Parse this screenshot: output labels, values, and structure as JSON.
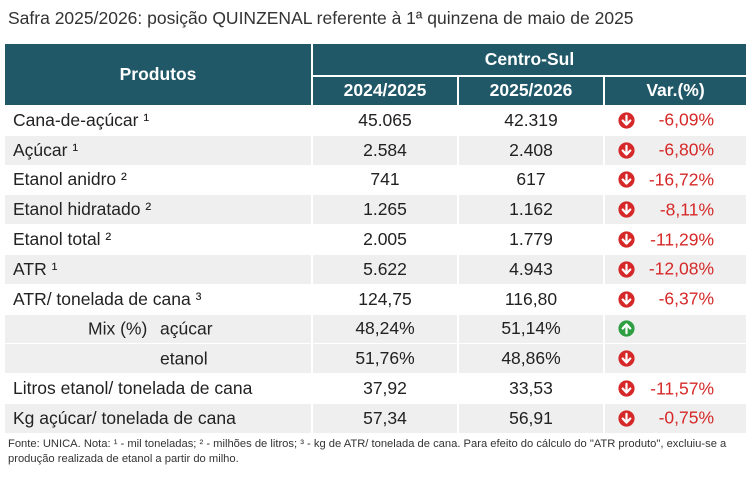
{
  "title": "Safra 2025/2026: posição QUINZENAL referente à 1ª quinzena de maio de 2025",
  "table": {
    "header_products": "Produtos",
    "header_region": "Centro-Sul",
    "col_2024": "2024/2025",
    "col_2025": "2025/2026",
    "col_var": "Var.(%)",
    "rows": [
      {
        "name": "Cana-de-açúcar ¹",
        "v2024": "45.065",
        "v2025": "42.319",
        "var": "-6,09%",
        "arrow": "down"
      },
      {
        "name": "Açúcar ¹",
        "v2024": "2.584",
        "v2025": "2.408",
        "var": "-6,80%",
        "arrow": "down"
      },
      {
        "name": "Etanol anidro ²",
        "v2024": "741",
        "v2025": "617",
        "var": "-16,72%",
        "arrow": "down"
      },
      {
        "name": "Etanol hidratado ²",
        "v2024": "1.265",
        "v2025": "1.162",
        "var": "-8,11%",
        "arrow": "down"
      },
      {
        "name": "Etanol total ²",
        "v2024": "2.005",
        "v2025": "1.779",
        "var": "-11,29%",
        "arrow": "down"
      },
      {
        "name": "ATR ¹",
        "v2024": "5.622",
        "v2025": "4.943",
        "var": "-12,08%",
        "arrow": "down"
      },
      {
        "name": "ATR/ tonelada de cana ³",
        "v2024": "124,75",
        "v2025": "116,80",
        "var": "-6,37%",
        "arrow": "down"
      }
    ],
    "mix": {
      "label": "Mix (%)",
      "sub1": {
        "name": "açúcar",
        "v2024": "48,24%",
        "v2025": "51,14%",
        "arrow": "up"
      },
      "sub2": {
        "name": "etanol",
        "v2024": "51,76%",
        "v2025": "48,86%",
        "arrow": "down"
      }
    },
    "rows_after": [
      {
        "name": "Litros etanol/ tonelada de cana",
        "v2024": "37,92",
        "v2025": "33,53",
        "var": "-11,57%",
        "arrow": "down"
      },
      {
        "name": "Kg açúcar/ tonelada de cana",
        "v2024": "57,34",
        "v2025": "56,91",
        "var": "-0,75%",
        "arrow": "down"
      }
    ]
  },
  "colors": {
    "header": "#215868",
    "negative": "#d62828",
    "down_arrow": "#d62828",
    "up_arrow": "#2ea043",
    "stripe": "#efefef"
  },
  "icons": {
    "down": "down-arrow-circle-icon",
    "up": "up-arrow-circle-icon"
  },
  "footnote": "Fonte: UNICA. Nota: ¹ - mil toneladas; ² - milhões de litros; ³ - kg de ATR/ tonelada de cana. Para efeito do cálculo do \"ATR produto\", excluiu-se a produção realizada de etanol a partir do milho."
}
